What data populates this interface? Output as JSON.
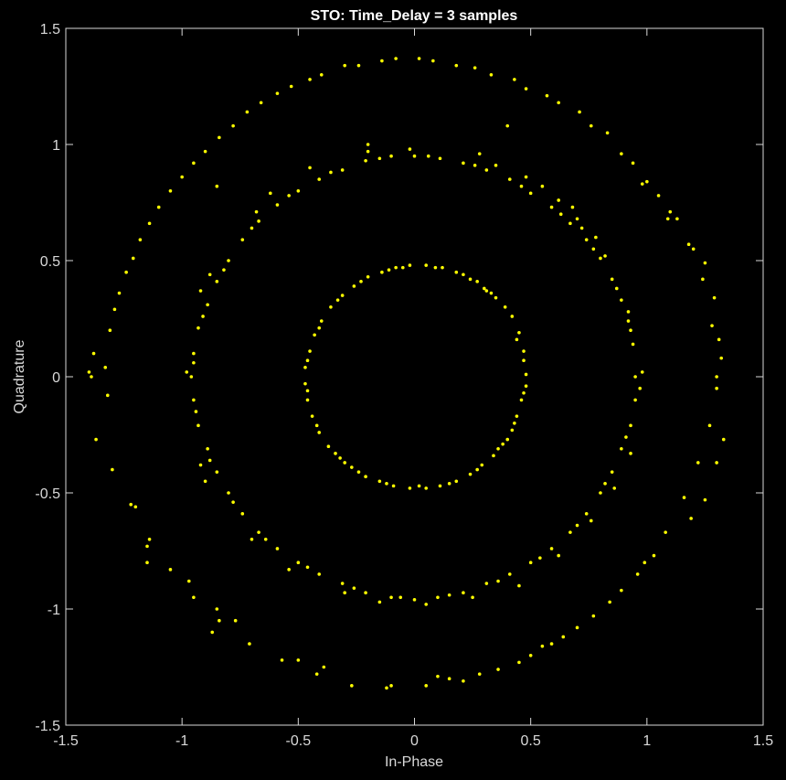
{
  "chart_data": {
    "type": "scatter",
    "title": "STO: Time_Delay = 3 samples",
    "xlabel": "In-Phase",
    "ylabel": "Quadrature",
    "xlim": [
      -1.5,
      1.5
    ],
    "ylim": [
      -1.5,
      1.5
    ],
    "xticks": [
      -1.5,
      -1,
      -0.5,
      0,
      0.5,
      1,
      1.5
    ],
    "yticks": [
      -1.5,
      -1,
      -0.5,
      0,
      0.5,
      1,
      1.5
    ],
    "xtick_labels": [
      "-1.5",
      "-1",
      "-0.5",
      "0",
      "0.5",
      "1",
      "1.5"
    ],
    "ytick_labels": [
      "-1.5",
      "-1",
      "-0.5",
      "0",
      "0.5",
      "1",
      "1.5"
    ],
    "grid": false,
    "background": "#000000",
    "axis_color": "#d9d9d9",
    "marker_color": "#ffff00",
    "series": [
      {
        "points": [
          [
            0.48,
            0.01
          ],
          [
            0.47,
            0.11
          ],
          [
            0.45,
            0.19
          ],
          [
            0.42,
            0.26
          ],
          [
            0.39,
            0.3
          ],
          [
            0.35,
            0.34
          ],
          [
            0.3,
            0.38
          ],
          [
            0.24,
            0.42
          ],
          [
            0.18,
            0.45
          ],
          [
            0.12,
            0.47
          ],
          [
            0.05,
            0.48
          ],
          [
            -0.02,
            0.48
          ],
          [
            -0.08,
            0.47
          ],
          [
            -0.14,
            0.45
          ],
          [
            -0.2,
            0.43
          ],
          [
            -0.26,
            0.39
          ],
          [
            -0.31,
            0.35
          ],
          [
            -0.36,
            0.3
          ],
          [
            -0.4,
            0.24
          ],
          [
            -0.43,
            0.18
          ],
          [
            -0.45,
            0.11
          ],
          [
            -0.47,
            0.04
          ],
          [
            -0.47,
            -0.03
          ],
          [
            -0.46,
            -0.1
          ],
          [
            -0.44,
            -0.17
          ],
          [
            -0.41,
            -0.24
          ],
          [
            -0.37,
            -0.3
          ],
          [
            -0.32,
            -0.35
          ],
          [
            -0.27,
            -0.39
          ],
          [
            -0.21,
            -0.43
          ],
          [
            -0.15,
            -0.45
          ],
          [
            -0.09,
            -0.47
          ],
          [
            -0.02,
            -0.48
          ],
          [
            0.05,
            -0.48
          ],
          [
            0.11,
            -0.47
          ],
          [
            0.18,
            -0.45
          ],
          [
            0.24,
            -0.42
          ],
          [
            0.29,
            -0.38
          ],
          [
            0.34,
            -0.34
          ],
          [
            0.38,
            -0.29
          ],
          [
            0.42,
            -0.23
          ],
          [
            0.44,
            -0.17
          ],
          [
            0.46,
            -0.1
          ],
          [
            0.48,
            -0.04
          ],
          [
            0.47,
            0.07
          ],
          [
            0.44,
            0.16
          ],
          [
            0.33,
            0.36
          ],
          [
            0.27,
            0.41
          ],
          [
            0.21,
            0.44
          ],
          [
            0.09,
            0.47
          ],
          [
            -0.11,
            0.46
          ],
          [
            -0.23,
            0.41
          ],
          [
            -0.33,
            0.33
          ],
          [
            -0.41,
            0.21
          ],
          [
            -0.46,
            0.07
          ],
          [
            -0.46,
            -0.06
          ],
          [
            -0.42,
            -0.21
          ],
          [
            -0.34,
            -0.33
          ],
          [
            -0.24,
            -0.41
          ],
          [
            -0.12,
            -0.46
          ],
          [
            0.02,
            -0.47
          ],
          [
            0.15,
            -0.46
          ],
          [
            0.27,
            -0.4
          ],
          [
            0.36,
            -0.31
          ],
          [
            0.43,
            -0.2
          ],
          [
            0.47,
            -0.07
          ],
          [
            -0.3,
            -0.37
          ],
          [
            0.31,
            0.37
          ],
          [
            -0.05,
            0.47
          ],
          [
            0.4,
            -0.27
          ],
          [
            0.95,
            0.0
          ],
          [
            0.94,
            0.14
          ],
          [
            0.92,
            0.24
          ],
          [
            0.89,
            0.33
          ],
          [
            0.85,
            0.42
          ],
          [
            0.8,
            0.51
          ],
          [
            0.74,
            0.59
          ],
          [
            0.67,
            0.66
          ],
          [
            0.59,
            0.73
          ],
          [
            0.5,
            0.79
          ],
          [
            0.41,
            0.85
          ],
          [
            0.31,
            0.89
          ],
          [
            0.21,
            0.92
          ],
          [
            0.11,
            0.94
          ],
          [
            0.0,
            0.95
          ],
          [
            -0.1,
            0.95
          ],
          [
            -0.21,
            0.93
          ],
          [
            -0.31,
            0.89
          ],
          [
            -0.41,
            0.85
          ],
          [
            -0.5,
            0.8
          ],
          [
            -0.59,
            0.74
          ],
          [
            -0.67,
            0.67
          ],
          [
            -0.74,
            0.59
          ],
          [
            -0.8,
            0.5
          ],
          [
            -0.85,
            0.41
          ],
          [
            -0.89,
            0.31
          ],
          [
            -0.93,
            0.21
          ],
          [
            -0.95,
            0.1
          ],
          [
            -0.96,
            0.0
          ],
          [
            -0.95,
            -0.1
          ],
          [
            -0.93,
            -0.21
          ],
          [
            -0.89,
            -0.31
          ],
          [
            -0.85,
            -0.41
          ],
          [
            -0.8,
            -0.5
          ],
          [
            -0.74,
            -0.59
          ],
          [
            -0.67,
            -0.67
          ],
          [
            -0.59,
            -0.74
          ],
          [
            -0.5,
            -0.8
          ],
          [
            -0.41,
            -0.85
          ],
          [
            -0.31,
            -0.89
          ],
          [
            -0.21,
            -0.93
          ],
          [
            -0.1,
            -0.95
          ],
          [
            0.0,
            -0.96
          ],
          [
            0.1,
            -0.95
          ],
          [
            0.21,
            -0.93
          ],
          [
            0.31,
            -0.89
          ],
          [
            0.41,
            -0.85
          ],
          [
            0.5,
            -0.8
          ],
          [
            0.59,
            -0.74
          ],
          [
            0.67,
            -0.67
          ],
          [
            0.74,
            -0.59
          ],
          [
            0.8,
            -0.5
          ],
          [
            0.85,
            -0.41
          ],
          [
            0.89,
            -0.31
          ],
          [
            0.93,
            -0.21
          ],
          [
            0.95,
            -0.1
          ],
          [
            0.93,
            0.2
          ],
          [
            0.87,
            0.38
          ],
          [
            0.77,
            0.55
          ],
          [
            0.63,
            0.7
          ],
          [
            0.46,
            0.82
          ],
          [
            0.26,
            0.91
          ],
          [
            0.06,
            0.95
          ],
          [
            -0.15,
            0.94
          ],
          [
            -0.36,
            0.88
          ],
          [
            -0.54,
            0.78
          ],
          [
            -0.7,
            0.64
          ],
          [
            -0.82,
            0.46
          ],
          [
            -0.91,
            0.26
          ],
          [
            -0.95,
            0.06
          ],
          [
            -0.94,
            -0.15
          ],
          [
            -0.88,
            -0.36
          ],
          [
            -0.78,
            -0.54
          ],
          [
            -0.64,
            -0.7
          ],
          [
            -0.46,
            -0.82
          ],
          [
            -0.26,
            -0.91
          ],
          [
            -0.06,
            -0.95
          ],
          [
            0.15,
            -0.94
          ],
          [
            0.36,
            -0.88
          ],
          [
            0.54,
            -0.78
          ],
          [
            0.7,
            -0.64
          ],
          [
            0.82,
            -0.46
          ],
          [
            0.91,
            -0.26
          ],
          [
            0.98,
            0.02
          ],
          [
            0.97,
            -0.05
          ],
          [
            0.92,
            0.28
          ],
          [
            0.7,
            0.68
          ],
          [
            0.62,
            0.76
          ],
          [
            0.55,
            0.82
          ],
          [
            0.35,
            0.91
          ],
          [
            -0.02,
            0.98
          ],
          [
            -0.45,
            0.9
          ],
          [
            -0.62,
            0.79
          ],
          [
            -0.88,
            0.44
          ],
          [
            -0.98,
            0.02
          ],
          [
            -0.9,
            -0.45
          ],
          [
            -0.7,
            -0.7
          ],
          [
            -0.3,
            -0.93
          ],
          [
            0.05,
            -0.98
          ],
          [
            0.45,
            -0.9
          ],
          [
            0.76,
            -0.62
          ],
          [
            0.93,
            -0.33
          ],
          [
            0.68,
            0.73
          ],
          [
            0.72,
            0.64
          ],
          [
            0.78,
            0.6
          ],
          [
            0.82,
            0.52
          ],
          [
            0.48,
            0.86
          ],
          [
            0.28,
            0.96
          ],
          [
            -0.2,
            0.97
          ],
          [
            -0.68,
            0.71
          ],
          [
            -0.92,
            0.37
          ],
          [
            -0.92,
            -0.38
          ],
          [
            -0.54,
            -0.83
          ],
          [
            -0.15,
            -0.97
          ],
          [
            0.25,
            -0.95
          ],
          [
            0.62,
            -0.77
          ],
          [
            0.86,
            -0.48
          ],
          [
            1.3,
            0.0
          ],
          [
            1.28,
            0.22
          ],
          [
            1.24,
            0.42
          ],
          [
            1.18,
            0.57
          ],
          [
            1.1,
            0.71
          ],
          [
            1.0,
            0.84
          ],
          [
            0.89,
            0.96
          ],
          [
            0.76,
            1.08
          ],
          [
            0.62,
            1.18
          ],
          [
            0.48,
            1.24
          ],
          [
            0.33,
            1.3
          ],
          [
            0.18,
            1.34
          ],
          [
            0.02,
            1.37
          ],
          [
            -0.14,
            1.36
          ],
          [
            -0.3,
            1.34
          ],
          [
            -0.45,
            1.28
          ],
          [
            -0.59,
            1.22
          ],
          [
            -0.72,
            1.14
          ],
          [
            -0.84,
            1.03
          ],
          [
            -0.95,
            0.92
          ],
          [
            -1.05,
            0.8
          ],
          [
            -1.14,
            0.66
          ],
          [
            -1.21,
            0.51
          ],
          [
            -1.27,
            0.36
          ],
          [
            -1.31,
            0.2
          ],
          [
            -1.33,
            0.04
          ],
          [
            -1.38,
            0.1
          ],
          [
            -1.4,
            0.02
          ],
          [
            -1.37,
            -0.27
          ],
          [
            -1.3,
            -0.4
          ],
          [
            -1.22,
            -0.55
          ],
          [
            -1.14,
            -0.7
          ],
          [
            -1.05,
            -0.83
          ],
          [
            -0.95,
            -0.95
          ],
          [
            -0.84,
            -1.05
          ],
          [
            -0.71,
            -1.15
          ],
          [
            -0.57,
            -1.22
          ],
          [
            -0.42,
            -1.28
          ],
          [
            -0.27,
            -1.33
          ],
          [
            -0.12,
            -1.34
          ],
          [
            0.05,
            -1.33
          ],
          [
            0.21,
            -1.31
          ],
          [
            0.36,
            -1.26
          ],
          [
            0.5,
            -1.2
          ],
          [
            0.64,
            -1.12
          ],
          [
            0.77,
            -1.03
          ],
          [
            0.89,
            -0.92
          ],
          [
            0.99,
            -0.8
          ],
          [
            1.08,
            -0.67
          ],
          [
            1.16,
            -0.52
          ],
          [
            1.22,
            -0.37
          ],
          [
            1.27,
            -0.21
          ],
          [
            1.3,
            -0.05
          ],
          [
            1.32,
            0.08
          ],
          [
            1.31,
            0.16
          ],
          [
            1.29,
            0.34
          ],
          [
            1.25,
            0.49
          ],
          [
            1.13,
            0.68
          ],
          [
            1.05,
            0.78
          ],
          [
            0.94,
            0.92
          ],
          [
            0.83,
            1.05
          ],
          [
            0.71,
            1.14
          ],
          [
            0.57,
            1.21
          ],
          [
            0.43,
            1.28
          ],
          [
            0.26,
            1.33
          ],
          [
            0.08,
            1.36
          ],
          [
            -0.08,
            1.37
          ],
          [
            -0.24,
            1.34
          ],
          [
            -0.4,
            1.3
          ],
          [
            -0.53,
            1.25
          ],
          [
            -0.66,
            1.18
          ],
          [
            -0.78,
            1.08
          ],
          [
            -0.9,
            0.97
          ],
          [
            -1.0,
            0.86
          ],
          [
            -1.1,
            0.73
          ],
          [
            -1.18,
            0.59
          ],
          [
            -1.24,
            0.45
          ],
          [
            -1.29,
            0.29
          ],
          [
            -1.39,
            0.0
          ],
          [
            -1.2,
            -0.56
          ],
          [
            -1.15,
            -0.73
          ],
          [
            -0.97,
            -0.88
          ],
          [
            -0.87,
            -1.1
          ],
          [
            -0.85,
            -1.0
          ],
          [
            -0.5,
            -1.22
          ],
          [
            -0.39,
            -1.25
          ],
          [
            -0.1,
            -1.33
          ],
          [
            0.1,
            -1.29
          ],
          [
            0.28,
            -1.28
          ],
          [
            0.45,
            -1.23
          ],
          [
            0.55,
            -1.16
          ],
          [
            0.59,
            -1.15
          ],
          [
            0.7,
            -1.08
          ],
          [
            0.84,
            -0.97
          ],
          [
            0.96,
            -0.85
          ],
          [
            1.03,
            -0.77
          ],
          [
            1.19,
            -0.61
          ],
          [
            1.25,
            -0.53
          ],
          [
            1.3,
            -0.37
          ],
          [
            1.33,
            -0.27
          ],
          [
            -1.15,
            -0.8
          ],
          [
            -0.77,
            -1.05
          ],
          [
            0.15,
            -1.3
          ],
          [
            -1.32,
            -0.08
          ],
          [
            0.98,
            0.83
          ],
          [
            1.2,
            0.55
          ],
          [
            1.09,
            0.68
          ],
          [
            -0.85,
            0.82
          ],
          [
            -0.2,
            1.0
          ],
          [
            0.4,
            1.08
          ]
        ]
      }
    ]
  }
}
